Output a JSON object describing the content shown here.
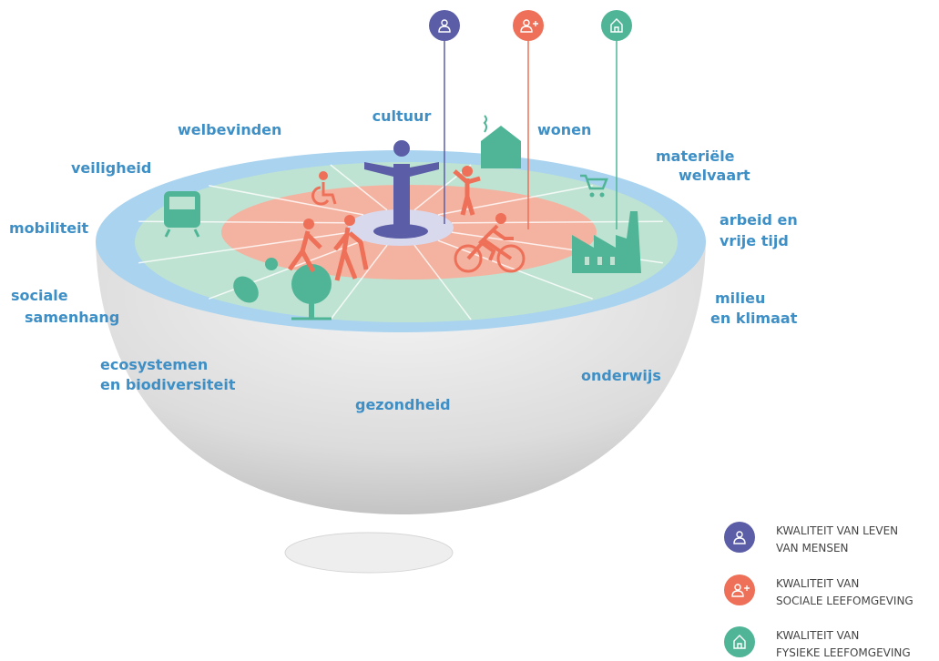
{
  "labels": [
    {
      "lines": [
        "cultuur"
      ]
    },
    {
      "lines": [
        "welbevinden"
      ]
    },
    {
      "lines": [
        "wonen"
      ]
    },
    {
      "lines": [
        "materiële",
        "welvaart"
      ]
    },
    {
      "lines": [
        "veiligheid"
      ]
    },
    {
      "lines": [
        "mobiliteit"
      ]
    },
    {
      "lines": [
        "arbeid en",
        "vrije tijd"
      ]
    },
    {
      "lines": [
        "sociale",
        "samenhang"
      ]
    },
    {
      "lines": [
        "milieu",
        "en klimaat"
      ]
    },
    {
      "lines": [
        "ecosystemen",
        "en biodiversiteit"
      ]
    },
    {
      "lines": [
        "onderwijs"
      ]
    },
    {
      "lines": [
        "gezondheid"
      ]
    }
  ],
  "legend": [
    {
      "lines": [
        "KWALITEIT VAN LEVEN",
        "VAN MENSEN"
      ]
    },
    {
      "lines": [
        "KWALITEIT VAN",
        "SOCIALE LEEFOMGEVING"
      ]
    },
    {
      "lines": [
        "KWALITEIT VAN",
        "FYSIEKE LEEFOMGEVING"
      ]
    }
  ]
}
